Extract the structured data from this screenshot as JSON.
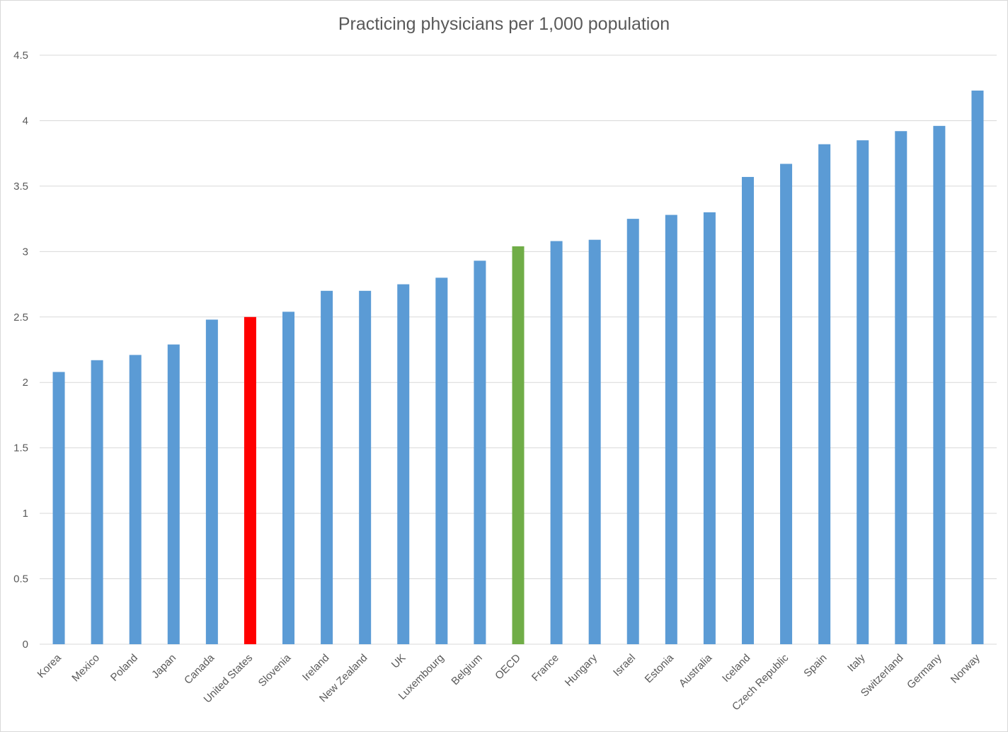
{
  "chart_data": {
    "type": "bar",
    "title": "Practicing physicians per 1,000 population",
    "xlabel": "",
    "ylabel": "",
    "ylim": [
      0,
      4.5
    ],
    "yticks": [
      "0",
      "0.5",
      "1",
      "1.5",
      "2",
      "2.5",
      "3",
      "3.5",
      "4",
      "4.5"
    ],
    "grid": true,
    "legend": "none",
    "categories": [
      "Korea",
      "Mexico",
      "Poland",
      "Japan",
      "Canada",
      "United States",
      "Slovenia",
      "Ireland",
      "New Zealand",
      "UK",
      "Luxembourg",
      "Belgium",
      "OECD",
      "France",
      "Hungary",
      "Israel",
      "Estonia",
      "Australia",
      "Iceland",
      "Czech Republic",
      "Spain",
      "Italy",
      "Switzerland",
      "Germany",
      "Norway"
    ],
    "values": [
      2.08,
      2.17,
      2.21,
      2.29,
      2.48,
      2.5,
      2.54,
      2.7,
      2.7,
      2.75,
      2.8,
      2.93,
      3.04,
      3.08,
      3.09,
      3.25,
      3.28,
      3.3,
      3.57,
      3.67,
      3.82,
      3.85,
      3.92,
      3.96,
      4.23
    ],
    "colors": {
      "default": "#5b9bd5",
      "highlight": {
        "United States": "#ff0000",
        "OECD": "#70ad47"
      },
      "grid": "#d9d9d9",
      "axis": "#d9d9d9",
      "text": "#595959"
    }
  }
}
